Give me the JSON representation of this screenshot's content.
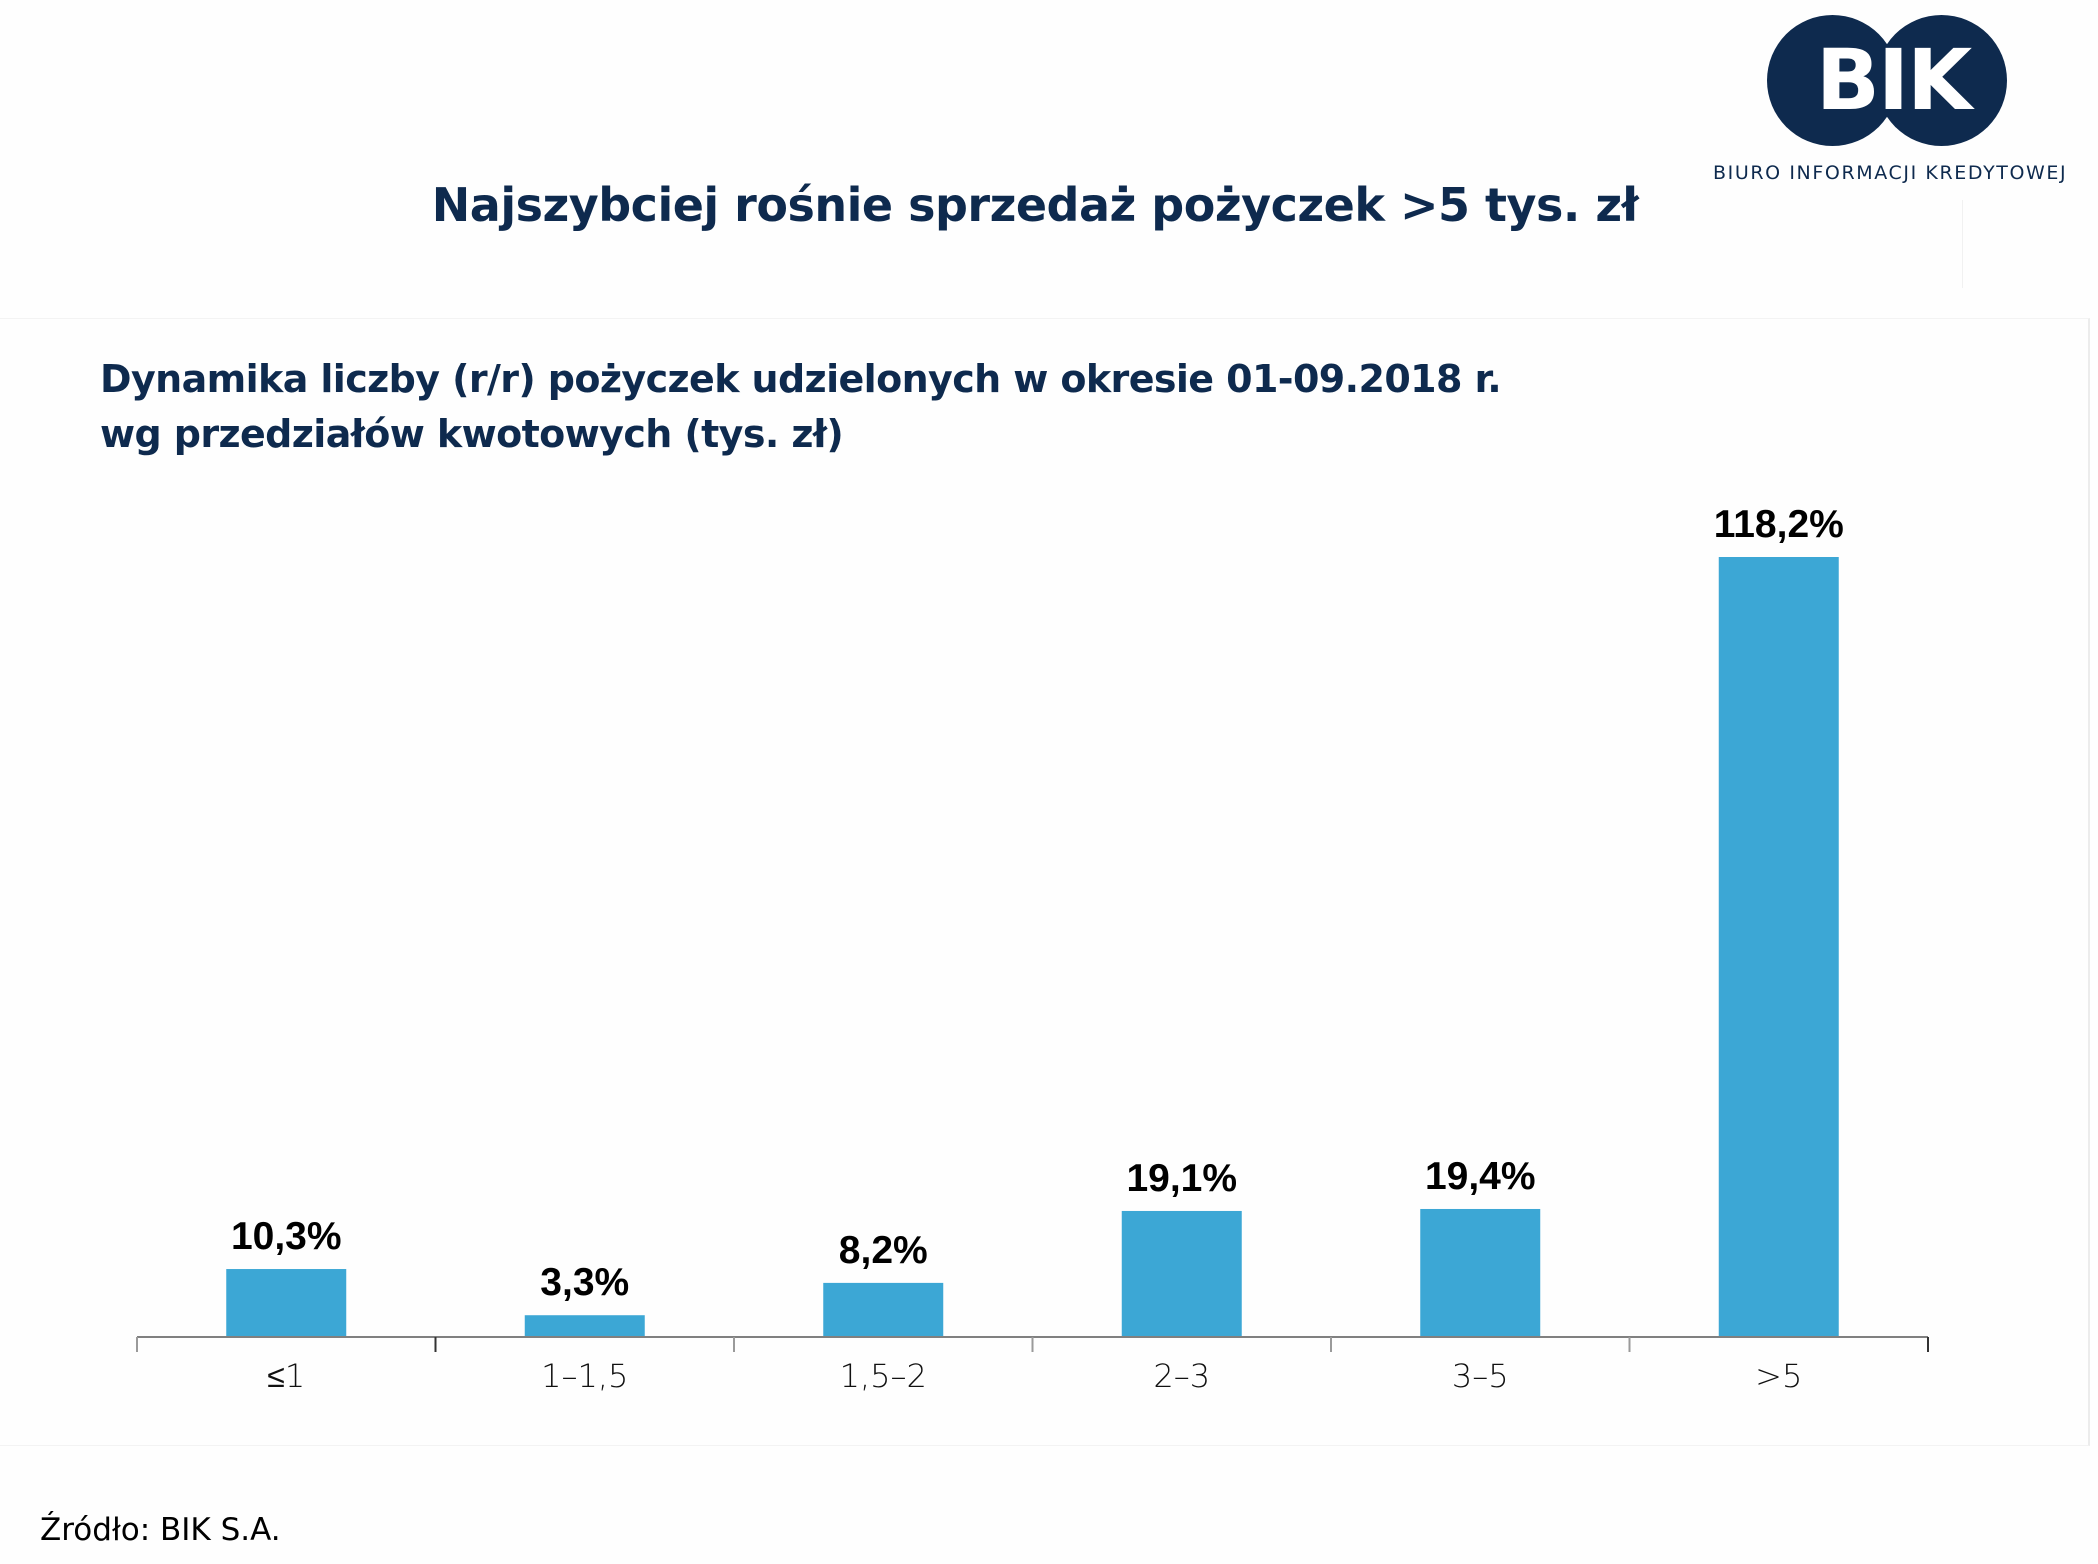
{
  "logo": {
    "text": "BIK",
    "tagline": "BIURO INFORMACJI KREDYTOWEJ",
    "color": "#0e2a4e"
  },
  "title": "Najszybciej rośnie sprzedaż pożyczek >5 tys. zł",
  "source": "Źródło: BIK S.A.",
  "colors": {
    "bar": "#3ca7d5",
    "text_navy": "#0e2a4e",
    "axis": "#808080"
  },
  "chart_data": {
    "type": "bar",
    "title": "Dynamika liczby (r/r) pożyczek udzielonych w okresie 01-09.2018 r.",
    "subtitle": "wg przedziałów kwotowych (tys. zł)",
    "xlabel": "",
    "ylabel": "",
    "categories": [
      "≤1",
      "1–1,5",
      "1,5–2",
      "2–3",
      "3–5",
      ">5"
    ],
    "values": [
      10.3,
      3.3,
      8.2,
      19.1,
      19.4,
      118.2
    ],
    "data_labels": [
      "10,3%",
      "3,3%",
      "8,2%",
      "19,1%",
      "19,4%",
      "118,2%"
    ],
    "unit": "%",
    "ylim": [
      0,
      118.2
    ],
    "grid": false,
    "legend": "none",
    "y_axis_visible": false
  }
}
